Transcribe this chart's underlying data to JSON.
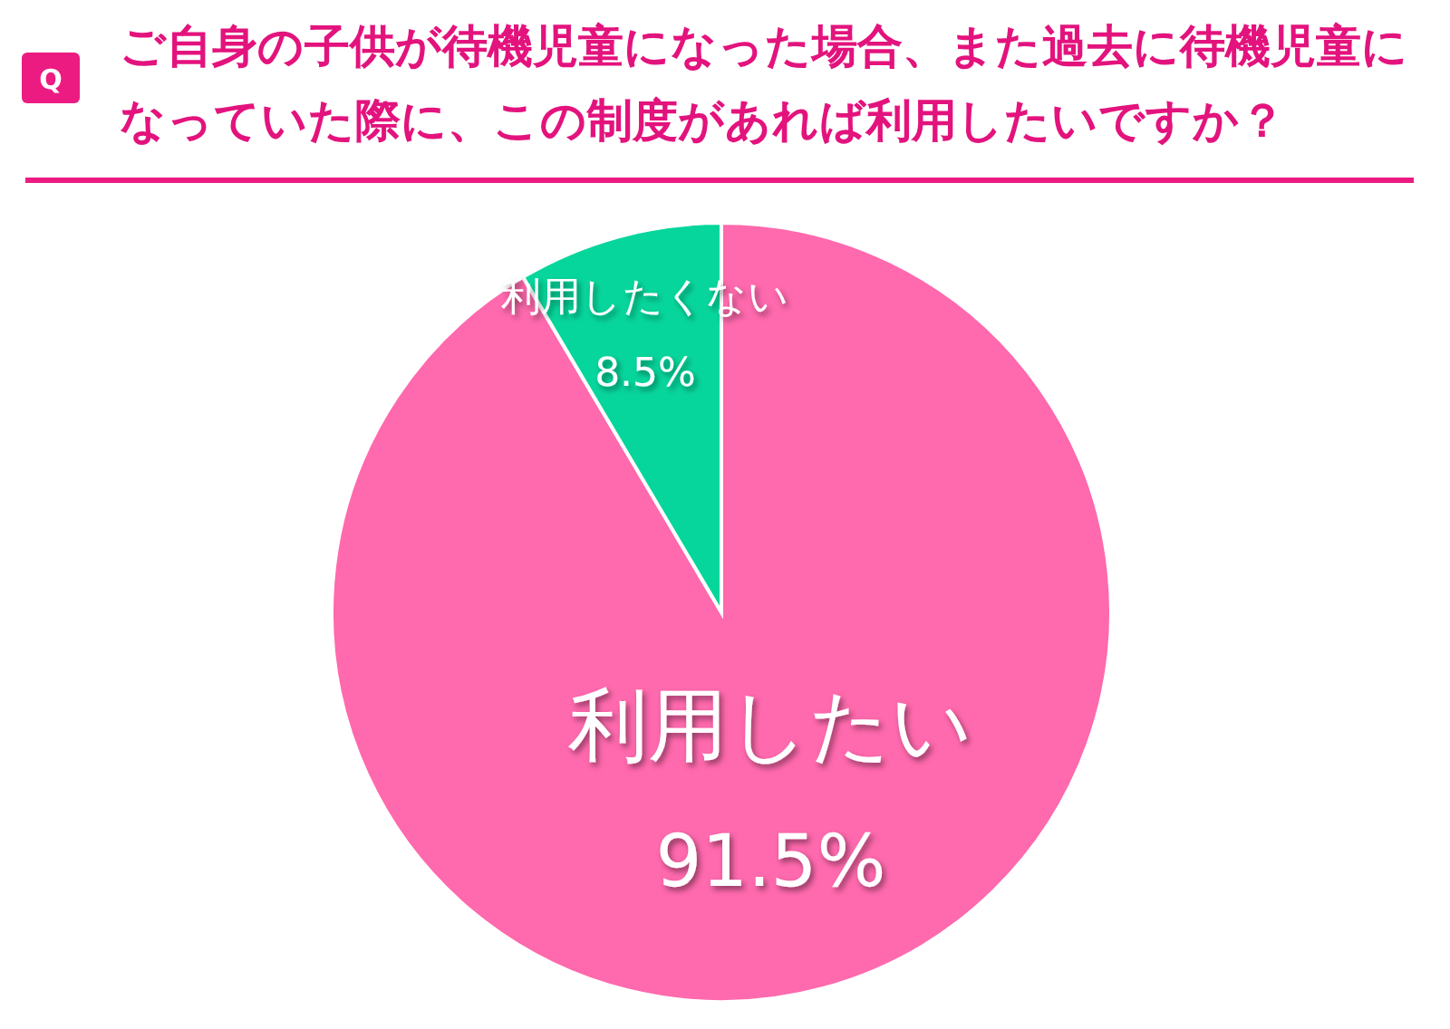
{
  "chart_data": {
    "type": "pie",
    "title": "ご自身の子供が待機児童になった場合、また過去に待機児童になっていた際に、この制度があれば利用したいですか？",
    "annotations": [
      "Q"
    ],
    "categories": [
      "利用したい",
      "利用したくない"
    ],
    "values": [
      91.5,
      8.5
    ],
    "colors": [
      "#ff69ad",
      "#07d69c"
    ],
    "value_labels": [
      "91.5%",
      "8.5%"
    ]
  }
}
